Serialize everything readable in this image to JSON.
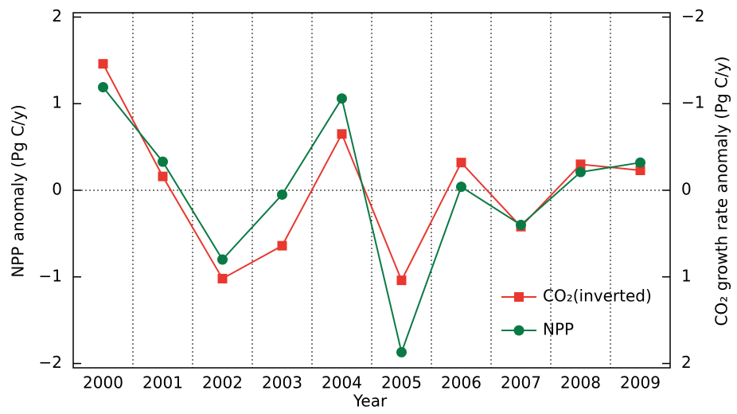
{
  "chart_data": {
    "type": "line",
    "xlabel": "Year",
    "ylabel": "NPP anomaly (Pg C/y)",
    "y2label": "CO₂ growth rate anomaly (Pg C/y)",
    "categories": [
      "2000",
      "2001",
      "2002",
      "2003",
      "2004",
      "2005",
      "2006",
      "2007",
      "2008",
      "2009"
    ],
    "series": [
      {
        "name": "CO₂(inverted)",
        "color": "#e8382f",
        "marker": "square",
        "axis": "y2",
        "values": [
          -1.46,
          -0.16,
          1.02,
          0.64,
          -0.65,
          1.04,
          -0.32,
          0.42,
          -0.3,
          -0.23
        ]
      },
      {
        "name": "NPP",
        "color": "#0a7a45",
        "marker": "circle",
        "values": [
          1.19,
          0.33,
          -0.8,
          -0.05,
          1.06,
          -1.87,
          0.04,
          -0.4,
          0.21,
          0.32
        ]
      }
    ],
    "ylim": [
      -2.05,
      2.05
    ],
    "yticks": [
      {
        "value": -2,
        "label": "−2"
      },
      {
        "value": -1,
        "label": "−1"
      },
      0,
      1,
      2
    ],
    "y2lim": [
      2.05,
      -2.05
    ],
    "y2ticks": [
      {
        "value": -2,
        "label": "−2"
      },
      {
        "value": -1,
        "label": "−1"
      },
      0,
      1,
      2
    ],
    "zero_line": true,
    "category_separators": true,
    "legend": "lower right"
  }
}
